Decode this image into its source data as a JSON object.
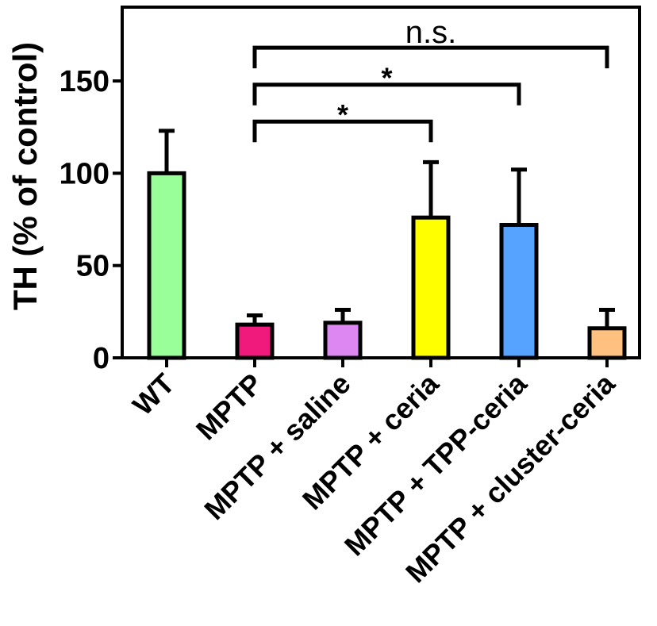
{
  "chart_data": {
    "type": "bar",
    "title": "",
    "xlabel": "",
    "ylabel": "TH (% of control)",
    "ylim": [
      0,
      190
    ],
    "yticks": [
      0,
      50,
      100,
      150
    ],
    "grid": false,
    "categories": [
      "WT",
      "MPTP",
      "MPTP + saline",
      "MPTP + ceria",
      "MPTP + TPP-ceria",
      "MPTP + cluster-ceria"
    ],
    "values": [
      100,
      18,
      19,
      76,
      72,
      16
    ],
    "errors": [
      23,
      5,
      7,
      30,
      30,
      10
    ],
    "colors": [
      "#99ff99",
      "#f0197c",
      "#dd88f2",
      "#ffff00",
      "#55a3ff",
      "#ffc080"
    ],
    "significance": [
      {
        "from": "MPTP",
        "to": "MPTP + ceria",
        "label": "*",
        "y": 128
      },
      {
        "from": "MPTP",
        "to": "MPTP + TPP-ceria",
        "label": "*",
        "y": 148
      },
      {
        "from": "MPTP",
        "to": "MPTP + cluster-ceria",
        "label": "n.s.",
        "y": 168
      }
    ]
  }
}
